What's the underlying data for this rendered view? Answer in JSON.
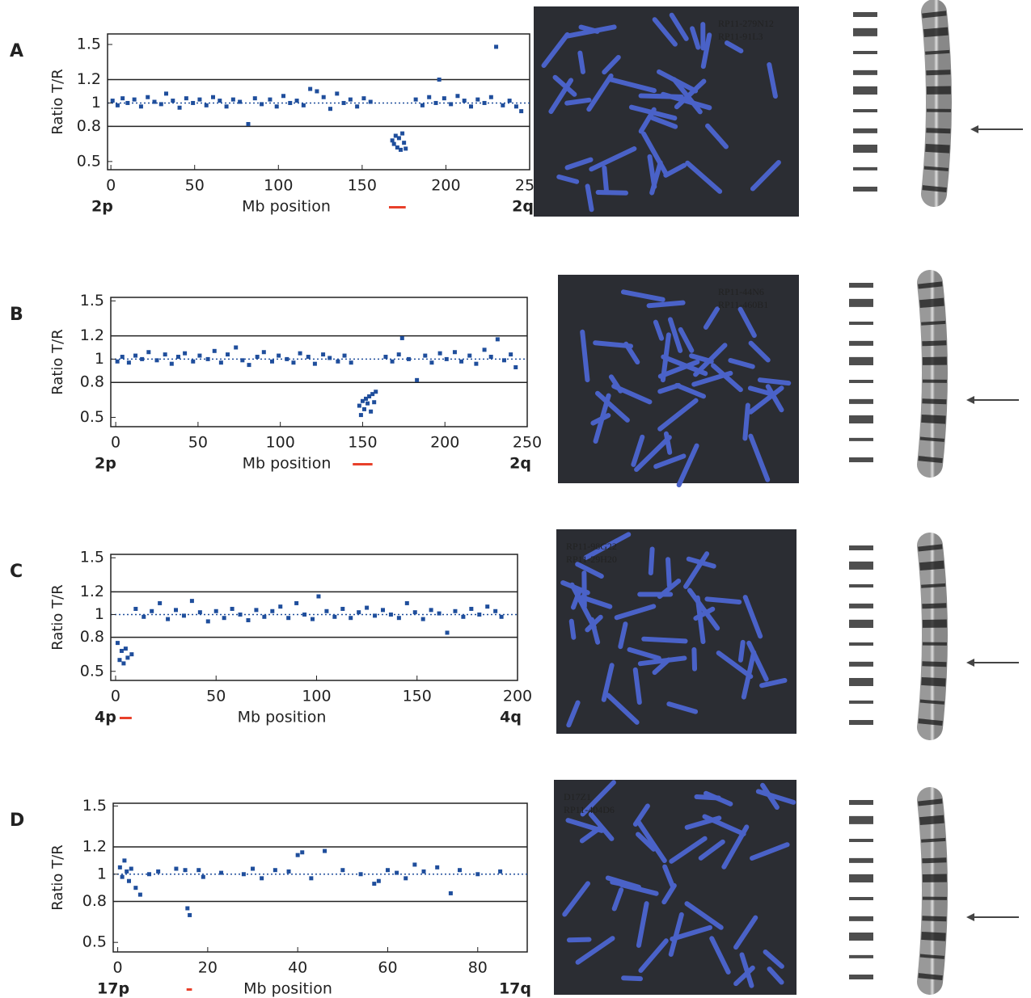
{
  "figure_panels": [
    {
      "letter": "A",
      "probes": [
        {
          "name": "RP11-279N12",
          "color": "#e8706a"
        },
        {
          "name": "RP11-91L3",
          "color": "#b8c850"
        }
      ]
    },
    {
      "letter": "B",
      "probes": [
        {
          "name": "RP11-44N6",
          "color": "#e8706a"
        },
        {
          "name": "RP11-460B1",
          "color": "#b8c850"
        }
      ]
    },
    {
      "letter": "C",
      "probes": [
        {
          "name": "RP11-98G22",
          "color": "#e8706a"
        },
        {
          "name": "RP11-29H20",
          "color": "#b8c850"
        }
      ]
    },
    {
      "letter": "D",
      "probes": [
        {
          "name": "D17Z1",
          "color": "#e8706a"
        },
        {
          "name": "RP11-404D6",
          "color": "#b8c850"
        }
      ]
    }
  ],
  "chart_data": [
    {
      "type": "scatter",
      "y_label": "Ratio T/R",
      "x_label": "Mb position",
      "p_arm": "2p",
      "q_arm": "2q",
      "color": "#1f4e9c",
      "xlim": [
        -2,
        250
      ],
      "xticks": [
        0,
        50,
        100,
        150,
        200,
        250
      ],
      "ylim": [
        0.43,
        1.59
      ],
      "yticks": [
        0.5,
        0.8,
        1,
        1.2,
        1.5
      ],
      "lines": [
        {
          "value": 1.2,
          "style": "solid"
        },
        {
          "value": 1,
          "style": "dotted"
        },
        {
          "value": 0.8,
          "style": "solid"
        }
      ],
      "highlight": [
        166,
        176
      ],
      "highlight_color": "#e8402a",
      "x": [
        1,
        4,
        7,
        10,
        14,
        18,
        22,
        26,
        30,
        33,
        37,
        41,
        45,
        49,
        53,
        57,
        61,
        65,
        69,
        73,
        77,
        82,
        86,
        90,
        95,
        99,
        103,
        107,
        111,
        115,
        119,
        123,
        127,
        131,
        135,
        139,
        143,
        147,
        151,
        155,
        168,
        169,
        170,
        171,
        172,
        173,
        174,
        175,
        176,
        182,
        186,
        190,
        194,
        196,
        199,
        203,
        207,
        211,
        215,
        219,
        223,
        227,
        230,
        234,
        238,
        242,
        245
      ],
      "values": [
        1.02,
        0.98,
        1.04,
        1.0,
        1.03,
        0.97,
        1.05,
        1.01,
        0.99,
        1.08,
        1.02,
        0.96,
        1.04,
        1.0,
        1.03,
        0.98,
        1.05,
        1.02,
        0.97,
        1.03,
        1.01,
        0.82,
        1.04,
        0.99,
        1.03,
        0.97,
        1.06,
        1.0,
        1.02,
        0.98,
        1.12,
        1.1,
        1.05,
        0.95,
        1.08,
        1.0,
        1.03,
        0.97,
        1.04,
        1.01,
        0.68,
        0.65,
        0.72,
        0.62,
        0.7,
        0.6,
        0.74,
        0.66,
        0.61,
        1.03,
        0.98,
        1.05,
        1.0,
        1.2,
        1.04,
        0.99,
        1.06,
        1.02,
        0.97,
        1.03,
        1.0,
        1.05,
        1.48,
        0.98,
        1.02,
        0.97,
        0.93
      ]
    },
    {
      "type": "scatter",
      "y_label": "Ratio T/R",
      "x_label": "Mb position",
      "p_arm": "2p",
      "q_arm": "2q",
      "color": "#1f4e9c",
      "xlim": [
        -3,
        250
      ],
      "xticks": [
        0,
        50,
        100,
        150,
        200,
        250
      ],
      "ylim": [
        0.42,
        1.53
      ],
      "yticks": [
        0.5,
        0.8,
        1,
        1.2,
        1.5
      ],
      "lines": [
        {
          "value": 1.2,
          "style": "solid"
        },
        {
          "value": 1,
          "style": "dotted"
        },
        {
          "value": 0.8,
          "style": "solid"
        }
      ],
      "highlight": [
        144,
        156
      ],
      "highlight_color": "#e8402a",
      "x": [
        1,
        4,
        8,
        12,
        16,
        20,
        25,
        30,
        34,
        38,
        42,
        47,
        51,
        56,
        60,
        64,
        68,
        73,
        77,
        81,
        86,
        90,
        95,
        99,
        104,
        108,
        112,
        117,
        121,
        126,
        130,
        135,
        139,
        143,
        148,
        149,
        150,
        151,
        152,
        153,
        154,
        155,
        156,
        157,
        158,
        164,
        168,
        172,
        174,
        178,
        183,
        188,
        192,
        197,
        201,
        206,
        210,
        215,
        219,
        224,
        228,
        232,
        236,
        240,
        243
      ],
      "values": [
        0.98,
        1.02,
        0.97,
        1.03,
        1.0,
        1.06,
        0.99,
        1.04,
        0.96,
        1.02,
        1.05,
        0.98,
        1.03,
        1.0,
        1.07,
        0.97,
        1.04,
        1.1,
        0.99,
        0.95,
        1.02,
        1.06,
        0.98,
        1.03,
        1.0,
        0.97,
        1.05,
        1.02,
        0.96,
        1.04,
        1.01,
        0.98,
        1.03,
        0.97,
        0.6,
        0.52,
        0.64,
        0.57,
        0.66,
        0.62,
        0.68,
        0.55,
        0.7,
        0.63,
        0.72,
        1.02,
        0.98,
        1.04,
        1.18,
        1.0,
        0.82,
        1.03,
        0.97,
        1.05,
        1.0,
        1.06,
        0.98,
        1.03,
        0.96,
        1.08,
        1.02,
        1.17,
        0.99,
        1.04,
        0.93
      ]
    },
    {
      "type": "scatter",
      "y_label": "Ratio T/R",
      "x_label": "Mb position",
      "p_arm": "4p",
      "q_arm": "4q",
      "color": "#1f4e9c",
      "xlim": [
        -2.4,
        200
      ],
      "xticks": [
        0,
        50,
        100,
        150,
        200
      ],
      "ylim": [
        0.42,
        1.53
      ],
      "yticks": [
        0.5,
        0.8,
        1,
        1.2,
        1.5
      ],
      "lines": [
        {
          "value": 1.2,
          "style": "solid"
        },
        {
          "value": 1,
          "style": "dotted"
        },
        {
          "value": 0.8,
          "style": "solid"
        }
      ],
      "highlight": [
        2,
        8
      ],
      "highlight_color": "#e8402a",
      "x": [
        1,
        2,
        3,
        4,
        5,
        6,
        8,
        10,
        14,
        18,
        22,
        26,
        30,
        34,
        38,
        42,
        46,
        50,
        54,
        58,
        62,
        66,
        70,
        74,
        78,
        82,
        86,
        90,
        94,
        98,
        101,
        105,
        109,
        113,
        117,
        121,
        125,
        129,
        133,
        137,
        141,
        145,
        149,
        153,
        157,
        161,
        165,
        169,
        173,
        177,
        181,
        185,
        189,
        192
      ],
      "values": [
        0.75,
        0.6,
        0.68,
        0.57,
        0.7,
        0.62,
        0.65,
        1.05,
        0.98,
        1.03,
        1.1,
        0.96,
        1.04,
        0.99,
        1.12,
        1.02,
        0.94,
        1.03,
        0.97,
        1.05,
        1.0,
        0.95,
        1.04,
        0.98,
        1.03,
        1.07,
        0.97,
        1.1,
        1.0,
        0.96,
        1.16,
        1.03,
        0.98,
        1.05,
        0.97,
        1.02,
        1.06,
        0.99,
        1.04,
        1.0,
        0.97,
        1.1,
        1.02,
        0.96,
        1.04,
        1.01,
        0.84,
        1.03,
        0.98,
        1.05,
        1.0,
        1.07,
        1.03,
        0.98
      ]
    },
    {
      "type": "scatter",
      "y_label": "Ratio T/R",
      "x_label": "Mb position",
      "p_arm": "17p",
      "q_arm": "17q",
      "color": "#1f4e9c",
      "xlim": [
        -1,
        91
      ],
      "xticks": [
        0,
        20,
        40,
        60,
        80
      ],
      "ylim": [
        0.43,
        1.52
      ],
      "yticks": [
        0.5,
        0.8,
        1,
        1.2,
        1.5
      ],
      "lines": [
        {
          "value": 1.2,
          "style": "solid"
        },
        {
          "value": 1,
          "style": "dotted"
        },
        {
          "value": 0.8,
          "style": "solid"
        }
      ],
      "highlight": [
        15.3,
        16.5
      ],
      "highlight_color": "#e8402a",
      "x": [
        0.5,
        1,
        1.5,
        2,
        2.5,
        3,
        4,
        5,
        7,
        9,
        13,
        15,
        15.5,
        16,
        18,
        19,
        23,
        28,
        30,
        32,
        35,
        38,
        40,
        41,
        43,
        46,
        50,
        54,
        57,
        58,
        60,
        62,
        64,
        66,
        68,
        71,
        74,
        76,
        80,
        85
      ],
      "values": [
        1.05,
        0.98,
        1.1,
        1.02,
        0.95,
        1.04,
        0.9,
        0.85,
        1.0,
        1.02,
        1.04,
        1.03,
        0.75,
        0.7,
        1.03,
        0.98,
        1.01,
        1.0,
        1.04,
        0.97,
        1.03,
        1.02,
        1.14,
        1.16,
        0.97,
        1.17,
        1.03,
        1.0,
        0.93,
        0.95,
        1.03,
        1.01,
        0.97,
        1.07,
        1.02,
        1.05,
        0.86,
        1.03,
        1.0,
        1.02
      ]
    }
  ]
}
